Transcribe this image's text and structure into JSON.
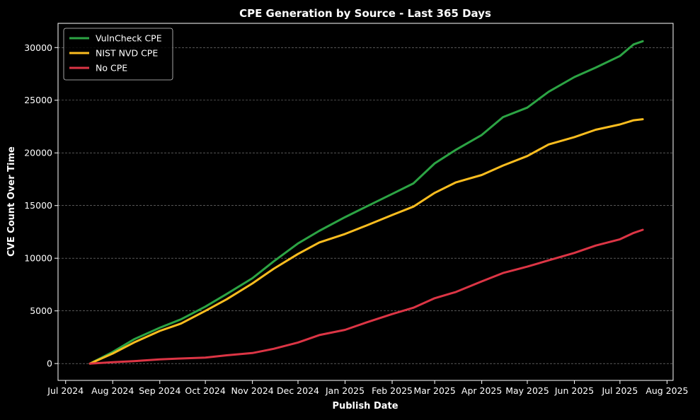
{
  "chart_data": {
    "type": "line",
    "title": "CPE Generation by Source - Last 365 Days",
    "xlabel": "Publish Date",
    "ylabel": "CVE Count Over Time",
    "x_range": [
      "2024-06-26",
      "2025-08-05"
    ],
    "ylim": [
      -1600,
      32300
    ],
    "x_ticks": [
      {
        "date": "2024-07-01",
        "label": "Jul 2024"
      },
      {
        "date": "2024-08-01",
        "label": "Aug 2024"
      },
      {
        "date": "2024-09-01",
        "label": "Sep 2024"
      },
      {
        "date": "2024-10-01",
        "label": "Oct 2024"
      },
      {
        "date": "2024-11-01",
        "label": "Nov 2024"
      },
      {
        "date": "2024-12-01",
        "label": "Dec 2024"
      },
      {
        "date": "2025-01-01",
        "label": "Jan 2025"
      },
      {
        "date": "2025-02-01",
        "label": "Feb 2025"
      },
      {
        "date": "2025-03-01",
        "label": "Mar 2025"
      },
      {
        "date": "2025-04-01",
        "label": "Apr 2025"
      },
      {
        "date": "2025-05-01",
        "label": "May 2025"
      },
      {
        "date": "2025-06-01",
        "label": "Jun 2025"
      },
      {
        "date": "2025-07-01",
        "label": "Jul 2025"
      },
      {
        "date": "2025-08-01",
        "label": "Aug 2025"
      }
    ],
    "y_ticks": [
      0,
      5000,
      10000,
      15000,
      20000,
      25000,
      30000
    ],
    "grid": {
      "y": true,
      "x": false,
      "style": "dashed"
    },
    "legend_position": "top-left",
    "x": [
      "2024-07-17",
      "2024-08-01",
      "2024-08-15",
      "2024-09-01",
      "2024-09-15",
      "2024-10-01",
      "2024-10-15",
      "2024-11-01",
      "2024-11-15",
      "2024-12-01",
      "2024-12-15",
      "2025-01-01",
      "2025-01-15",
      "2025-02-01",
      "2025-02-15",
      "2025-03-01",
      "2025-03-15",
      "2025-04-01",
      "2025-04-15",
      "2025-05-01",
      "2025-05-15",
      "2025-06-01",
      "2025-06-15",
      "2025-07-01",
      "2025-07-10",
      "2025-07-16"
    ],
    "series": [
      {
        "name": "VulnCheck CPE",
        "color": "#2ca444",
        "values": [
          0,
          1100,
          2300,
          3400,
          4200,
          5400,
          6600,
          8100,
          9700,
          11400,
          12600,
          13900,
          14900,
          16100,
          17100,
          19000,
          20300,
          21700,
          23400,
          24300,
          25800,
          27200,
          28100,
          29200,
          30300,
          30600
        ]
      },
      {
        "name": "NIST NVD CPE",
        "color": "#fbbd1f",
        "values": [
          0,
          950,
          2000,
          3100,
          3800,
          5000,
          6100,
          7600,
          9000,
          10400,
          11500,
          12300,
          13100,
          14100,
          14900,
          16200,
          17200,
          17900,
          18800,
          19700,
          20800,
          21500,
          22200,
          22700,
          23100,
          23200
        ]
      },
      {
        "name": "No CPE",
        "color": "#dc3545",
        "values": [
          0,
          130,
          230,
          400,
          480,
          560,
          780,
          1000,
          1400,
          2000,
          2700,
          3200,
          3900,
          4700,
          5300,
          6200,
          6800,
          7800,
          8600,
          9200,
          9800,
          10500,
          11200,
          11800,
          12400,
          12700
        ]
      }
    ]
  }
}
